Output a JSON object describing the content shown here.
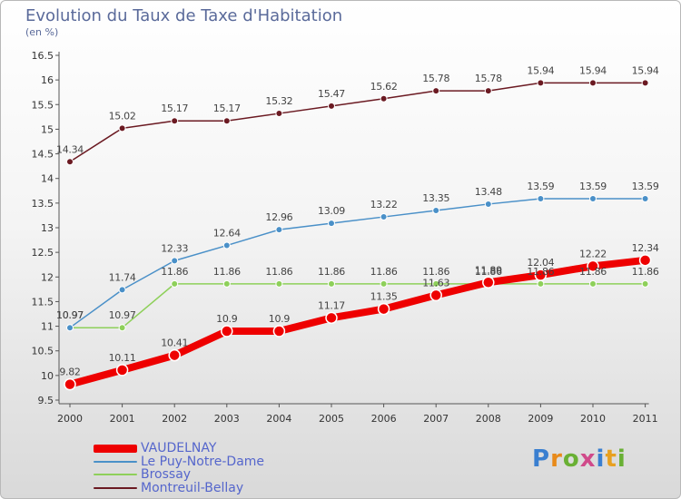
{
  "header": {
    "title": "Evolution du Taux de Taxe d'Habitation",
    "subtitle": "(en %)"
  },
  "logo": {
    "text": "Proxiti"
  },
  "chart_data": {
    "type": "line",
    "title": "Evolution du Taux de Taxe d'Habitation",
    "ylabel": "(en %)",
    "xlabel": "",
    "categories": [
      "2000",
      "2001",
      "2002",
      "2003",
      "2004",
      "2005",
      "2006",
      "2007",
      "2008",
      "2009",
      "2010",
      "2011"
    ],
    "ylim": [
      9.5,
      16.5
    ],
    "yticks": [
      "9.5",
      "10",
      "10.5",
      "11",
      "11.5",
      "12",
      "12.5",
      "13",
      "13.5",
      "14",
      "14.5",
      "15",
      "15.5",
      "16",
      "16.5"
    ],
    "grid": false,
    "legend_position": "bottom-left",
    "series": [
      {
        "name": "VAUDELNAY",
        "color": "#ee0000",
        "values": [
          9.82,
          10.11,
          10.41,
          10.9,
          10.9,
          11.17,
          11.35,
          11.63,
          11.89,
          12.04,
          12.22,
          12.34
        ],
        "labels": [
          "9.82",
          "10.11",
          "10.41",
          "10.9",
          "10.9",
          "11.17",
          "11.35",
          "11.63",
          "11.89",
          "12.04",
          "12.22",
          "12.34"
        ]
      },
      {
        "name": "Le Puy-Notre-Dame",
        "color": "#4a90c8",
        "values": [
          10.97,
          11.74,
          12.33,
          12.64,
          12.96,
          13.09,
          13.22,
          13.35,
          13.48,
          13.59,
          13.59,
          13.59
        ],
        "labels": [
          "10.97",
          "11.74",
          "12.33",
          "12.64",
          "12.96",
          "13.09",
          "13.22",
          "13.35",
          "13.48",
          "13.59",
          "13.59",
          "13.59"
        ]
      },
      {
        "name": "Brossay",
        "color": "#8ed05a",
        "values": [
          10.97,
          10.97,
          11.86,
          11.86,
          11.86,
          11.86,
          11.86,
          11.86,
          11.86,
          11.86,
          11.86,
          11.86
        ],
        "labels": [
          "10.97",
          "10.97",
          "11.86",
          "11.86",
          "11.86",
          "11.86",
          "11.86",
          "11.86",
          "11.86",
          "11.86",
          "11.86",
          "11.86"
        ]
      },
      {
        "name": "Montreuil-Bellay",
        "color": "#6b1a22",
        "values": [
          14.34,
          15.02,
          15.17,
          15.17,
          15.32,
          15.47,
          15.62,
          15.78,
          15.78,
          15.94,
          15.94,
          15.94
        ],
        "labels": [
          "14.34",
          "15.02",
          "15.17",
          "15.17",
          "15.32",
          "15.47",
          "15.62",
          "15.78",
          "15.78",
          "15.94",
          "15.94",
          "15.94"
        ]
      }
    ]
  }
}
